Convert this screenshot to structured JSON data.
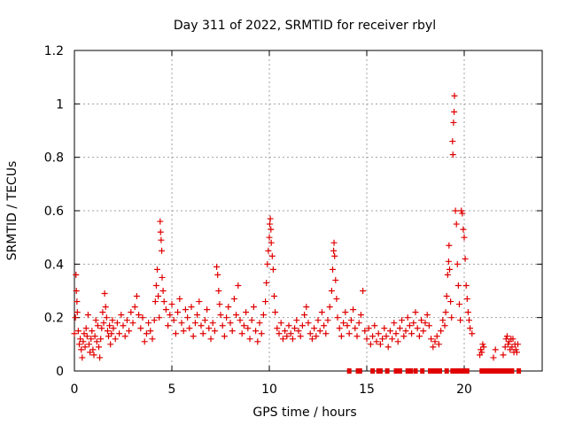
{
  "chart_data": {
    "type": "scatter",
    "title": "Day 311 of 2022, SRMTID for receiver rbyl",
    "xlabel": "GPS time / hours",
    "ylabel": "SRMTID / TECUs",
    "xlim": [
      0,
      24
    ],
    "ylim": [
      0,
      1.2
    ],
    "xticks": [
      0,
      5,
      10,
      15,
      20
    ],
    "xtick_labels": [
      "0",
      "5",
      "10",
      "15",
      "20"
    ],
    "yticks": [
      0,
      0.2,
      0.4,
      0.6,
      0.8,
      1.0,
      1.2
    ],
    "ytick_labels": [
      "0",
      "0.2",
      "0.4",
      "0.6",
      "0.8",
      "1",
      "1.2"
    ],
    "grid": true,
    "marker": "+",
    "color": "#e00000",
    "series": [
      {
        "name": "SRMTID",
        "points": [
          [
            0.0,
            0.14
          ],
          [
            0.05,
            0.2
          ],
          [
            0.08,
            0.36
          ],
          [
            0.1,
            0.3
          ],
          [
            0.13,
            0.26
          ],
          [
            0.15,
            0.22
          ],
          [
            0.2,
            0.15
          ],
          [
            0.25,
            0.1
          ],
          [
            0.3,
            0.12
          ],
          [
            0.35,
            0.08
          ],
          [
            0.4,
            0.05
          ],
          [
            0.45,
            0.11
          ],
          [
            0.5,
            0.14
          ],
          [
            0.55,
            0.09
          ],
          [
            0.6,
            0.16
          ],
          [
            0.65,
            0.13
          ],
          [
            0.7,
            0.21
          ],
          [
            0.75,
            0.1
          ],
          [
            0.8,
            0.07
          ],
          [
            0.85,
            0.12
          ],
          [
            0.9,
            0.15
          ],
          [
            0.95,
            0.08
          ],
          [
            1.0,
            0.06
          ],
          [
            1.05,
            0.13
          ],
          [
            1.1,
            0.19
          ],
          [
            1.15,
            0.11
          ],
          [
            1.2,
            0.17
          ],
          [
            1.25,
            0.09
          ],
          [
            1.3,
            0.05
          ],
          [
            1.35,
            0.12
          ],
          [
            1.4,
            0.16
          ],
          [
            1.45,
            0.22
          ],
          [
            1.5,
            0.18
          ],
          [
            1.55,
            0.29
          ],
          [
            1.6,
            0.24
          ],
          [
            1.65,
            0.2
          ],
          [
            1.7,
            0.15
          ],
          [
            1.75,
            0.13
          ],
          [
            1.8,
            0.17
          ],
          [
            1.85,
            0.1
          ],
          [
            1.9,
            0.14
          ],
          [
            1.95,
            0.19
          ],
          [
            2.0,
            0.16
          ],
          [
            2.1,
            0.12
          ],
          [
            2.2,
            0.18
          ],
          [
            2.3,
            0.14
          ],
          [
            2.4,
            0.21
          ],
          [
            2.5,
            0.17
          ],
          [
            2.6,
            0.13
          ],
          [
            2.7,
            0.19
          ],
          [
            2.8,
            0.15
          ],
          [
            2.9,
            0.22
          ],
          [
            3.0,
            0.18
          ],
          [
            3.1,
            0.24
          ],
          [
            3.2,
            0.28
          ],
          [
            3.3,
            0.21
          ],
          [
            3.4,
            0.16
          ],
          [
            3.5,
            0.2
          ],
          [
            3.6,
            0.11
          ],
          [
            3.7,
            0.14
          ],
          [
            3.8,
            0.18
          ],
          [
            3.9,
            0.15
          ],
          [
            4.0,
            0.12
          ],
          [
            4.1,
            0.19
          ],
          [
            4.15,
            0.26
          ],
          [
            4.2,
            0.32
          ],
          [
            4.25,
            0.38
          ],
          [
            4.3,
            0.28
          ],
          [
            4.35,
            0.2
          ],
          [
            4.4,
            0.56
          ],
          [
            4.42,
            0.52
          ],
          [
            4.45,
            0.49
          ],
          [
            4.48,
            0.45
          ],
          [
            4.5,
            0.35
          ],
          [
            4.55,
            0.3
          ],
          [
            4.6,
            0.26
          ],
          [
            4.7,
            0.23
          ],
          [
            4.8,
            0.17
          ],
          [
            4.9,
            0.21
          ],
          [
            5.0,
            0.25
          ],
          [
            5.1,
            0.19
          ],
          [
            5.2,
            0.14
          ],
          [
            5.3,
            0.22
          ],
          [
            5.4,
            0.27
          ],
          [
            5.5,
            0.18
          ],
          [
            5.6,
            0.15
          ],
          [
            5.7,
            0.23
          ],
          [
            5.8,
            0.2
          ],
          [
            5.9,
            0.16
          ],
          [
            6.0,
            0.24
          ],
          [
            6.1,
            0.13
          ],
          [
            6.2,
            0.18
          ],
          [
            6.3,
            0.21
          ],
          [
            6.4,
            0.26
          ],
          [
            6.5,
            0.17
          ],
          [
            6.6,
            0.14
          ],
          [
            6.7,
            0.19
          ],
          [
            6.8,
            0.23
          ],
          [
            6.9,
            0.16
          ],
          [
            7.0,
            0.12
          ],
          [
            7.1,
            0.18
          ],
          [
            7.2,
            0.15
          ],
          [
            7.3,
            0.39
          ],
          [
            7.35,
            0.36
          ],
          [
            7.4,
            0.3
          ],
          [
            7.45,
            0.25
          ],
          [
            7.5,
            0.21
          ],
          [
            7.6,
            0.17
          ],
          [
            7.7,
            0.13
          ],
          [
            7.8,
            0.2
          ],
          [
            7.9,
            0.24
          ],
          [
            8.0,
            0.18
          ],
          [
            8.1,
            0.15
          ],
          [
            8.2,
            0.27
          ],
          [
            8.3,
            0.21
          ],
          [
            8.4,
            0.32
          ],
          [
            8.5,
            0.19
          ],
          [
            8.6,
            0.14
          ],
          [
            8.7,
            0.17
          ],
          [
            8.8,
            0.22
          ],
          [
            8.9,
            0.16
          ],
          [
            9.0,
            0.12
          ],
          [
            9.1,
            0.19
          ],
          [
            9.2,
            0.24
          ],
          [
            9.3,
            0.15
          ],
          [
            9.4,
            0.11
          ],
          [
            9.5,
            0.18
          ],
          [
            9.6,
            0.14
          ],
          [
            9.7,
            0.21
          ],
          [
            9.8,
            0.26
          ],
          [
            9.85,
            0.33
          ],
          [
            9.9,
            0.4
          ],
          [
            9.95,
            0.45
          ],
          [
            10.0,
            0.5
          ],
          [
            10.02,
            0.55
          ],
          [
            10.05,
            0.57
          ],
          [
            10.08,
            0.53
          ],
          [
            10.1,
            0.48
          ],
          [
            10.15,
            0.43
          ],
          [
            10.2,
            0.38
          ],
          [
            10.25,
            0.28
          ],
          [
            10.3,
            0.22
          ],
          [
            10.4,
            0.16
          ],
          [
            10.5,
            0.14
          ],
          [
            10.6,
            0.18
          ],
          [
            10.7,
            0.12
          ],
          [
            10.8,
            0.15
          ],
          [
            10.9,
            0.13
          ],
          [
            11.0,
            0.17
          ],
          [
            11.1,
            0.14
          ],
          [
            11.2,
            0.12
          ],
          [
            11.3,
            0.16
          ],
          [
            11.4,
            0.19
          ],
          [
            11.5,
            0.15
          ],
          [
            11.6,
            0.13
          ],
          [
            11.7,
            0.17
          ],
          [
            11.8,
            0.21
          ],
          [
            11.9,
            0.24
          ],
          [
            12.0,
            0.18
          ],
          [
            12.1,
            0.14
          ],
          [
            12.2,
            0.12
          ],
          [
            12.3,
            0.16
          ],
          [
            12.4,
            0.13
          ],
          [
            12.5,
            0.19
          ],
          [
            12.6,
            0.15
          ],
          [
            12.7,
            0.22
          ],
          [
            12.8,
            0.17
          ],
          [
            12.9,
            0.14
          ],
          [
            13.0,
            0.19
          ],
          [
            13.1,
            0.24
          ],
          [
            13.2,
            0.3
          ],
          [
            13.25,
            0.38
          ],
          [
            13.3,
            0.45
          ],
          [
            13.32,
            0.48
          ],
          [
            13.35,
            0.43
          ],
          [
            13.4,
            0.34
          ],
          [
            13.45,
            0.27
          ],
          [
            13.5,
            0.2
          ],
          [
            13.6,
            0.16
          ],
          [
            13.7,
            0.13
          ],
          [
            13.8,
            0.18
          ],
          [
            13.9,
            0.22
          ],
          [
            14.0,
            0.17
          ],
          [
            14.1,
            0.14
          ],
          [
            14.2,
            0.19
          ],
          [
            14.3,
            0.23
          ],
          [
            14.4,
            0.16
          ],
          [
            14.5,
            0.13
          ],
          [
            14.6,
            0.18
          ],
          [
            14.7,
            0.21
          ],
          [
            14.8,
            0.3
          ],
          [
            14.9,
            0.15
          ],
          [
            15.0,
            0.12
          ],
          [
            15.1,
            0.16
          ],
          [
            15.2,
            0.1
          ],
          [
            15.3,
            0.13
          ],
          [
            15.4,
            0.17
          ],
          [
            15.5,
            0.11
          ],
          [
            15.6,
            0.14
          ],
          [
            15.7,
            0.1
          ],
          [
            15.8,
            0.12
          ],
          [
            15.9,
            0.16
          ],
          [
            16.0,
            0.13
          ],
          [
            16.1,
            0.09
          ],
          [
            16.2,
            0.15
          ],
          [
            16.3,
            0.12
          ],
          [
            16.4,
            0.18
          ],
          [
            16.5,
            0.14
          ],
          [
            16.6,
            0.11
          ],
          [
            16.7,
            0.16
          ],
          [
            16.8,
            0.19
          ],
          [
            16.9,
            0.13
          ],
          [
            17.0,
            0.15
          ],
          [
            17.1,
            0.2
          ],
          [
            17.2,
            0.17
          ],
          [
            17.3,
            0.14
          ],
          [
            17.4,
            0.18
          ],
          [
            17.5,
            0.22
          ],
          [
            17.6,
            0.16
          ],
          [
            17.7,
            0.13
          ],
          [
            17.8,
            0.19
          ],
          [
            17.9,
            0.15
          ],
          [
            18.0,
            0.18
          ],
          [
            18.1,
            0.21
          ],
          [
            18.2,
            0.17
          ],
          [
            18.3,
            0.12
          ],
          [
            18.4,
            0.09
          ],
          [
            18.5,
            0.11
          ],
          [
            18.6,
            0.13
          ],
          [
            18.7,
            0.1
          ],
          [
            18.8,
            0.15
          ],
          [
            18.9,
            0.19
          ],
          [
            19.0,
            0.17
          ],
          [
            19.05,
            0.22
          ],
          [
            19.1,
            0.28
          ],
          [
            19.15,
            0.36
          ],
          [
            19.2,
            0.41
          ],
          [
            19.22,
            0.47
          ],
          [
            19.25,
            0.38
          ],
          [
            19.3,
            0.26
          ],
          [
            19.35,
            0.2
          ],
          [
            19.4,
            0.86
          ],
          [
            19.42,
            0.81
          ],
          [
            19.45,
            0.93
          ],
          [
            19.48,
            0.97
          ],
          [
            19.5,
            1.03
          ],
          [
            19.55,
            0.6
          ],
          [
            19.6,
            0.55
          ],
          [
            19.65,
            0.4
          ],
          [
            19.7,
            0.32
          ],
          [
            19.75,
            0.25
          ],
          [
            19.8,
            0.19
          ],
          [
            19.85,
            0.6
          ],
          [
            19.9,
            0.59
          ],
          [
            19.95,
            0.53
          ],
          [
            20.0,
            0.5
          ],
          [
            20.05,
            0.42
          ],
          [
            20.1,
            0.32
          ],
          [
            20.15,
            0.27
          ],
          [
            20.2,
            0.22
          ],
          [
            20.25,
            0.19
          ],
          [
            20.3,
            0.16
          ],
          [
            20.4,
            0.14
          ],
          [
            20.8,
            0.06
          ],
          [
            20.85,
            0.08
          ],
          [
            20.9,
            0.07
          ],
          [
            20.95,
            0.1
          ],
          [
            21.0,
            0.09
          ],
          [
            21.5,
            0.05
          ],
          [
            21.6,
            0.08
          ],
          [
            22.0,
            0.06
          ],
          [
            22.1,
            0.09
          ],
          [
            22.15,
            0.12
          ],
          [
            22.2,
            0.13
          ],
          [
            22.25,
            0.1
          ],
          [
            22.3,
            0.11
          ],
          [
            22.35,
            0.08
          ],
          [
            22.4,
            0.12
          ],
          [
            22.45,
            0.09
          ],
          [
            22.5,
            0.12
          ],
          [
            22.55,
            0.07
          ],
          [
            22.6,
            0.1
          ],
          [
            22.65,
            0.08
          ],
          [
            22.7,
            0.07
          ],
          [
            22.75,
            0.1
          ]
        ]
      }
    ],
    "zero_value_times": [
      14.1,
      14.55,
      14.65,
      15.3,
      15.6,
      15.7,
      16.05,
      16.5,
      16.7,
      17.1,
      17.25,
      17.5,
      17.85,
      18.25,
      18.45,
      18.55,
      18.75,
      19.1,
      19.4,
      19.48,
      19.55,
      19.62,
      19.7,
      19.78,
      19.85,
      19.95,
      20.05,
      20.15,
      20.9,
      21.05,
      21.2,
      21.3,
      21.4,
      21.55,
      21.65,
      21.75,
      21.85,
      21.95,
      22.05,
      22.15,
      22.3,
      22.45,
      22.8
    ]
  }
}
